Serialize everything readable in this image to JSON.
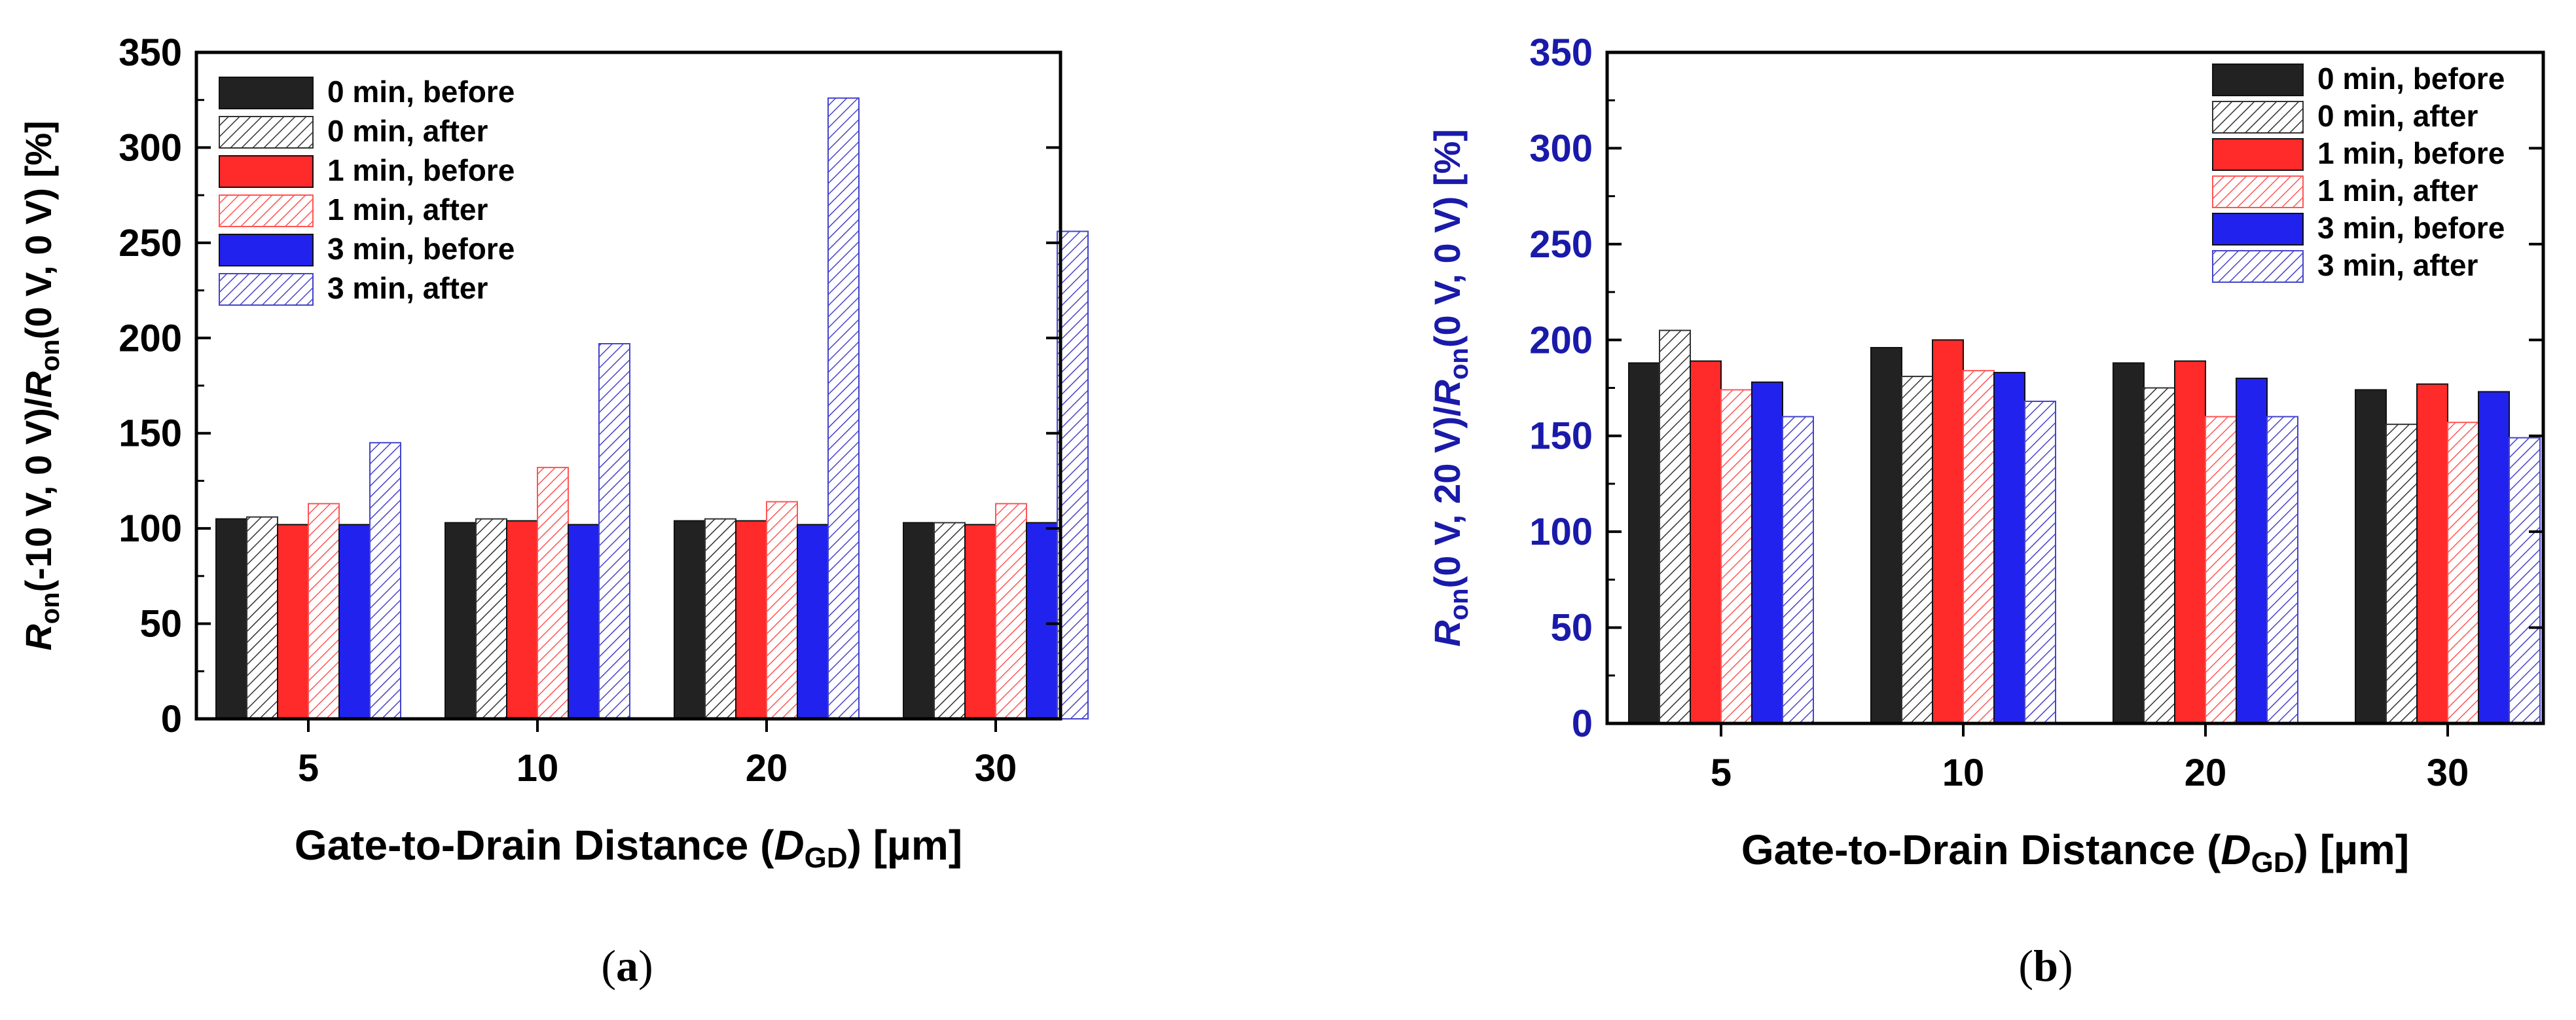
{
  "chart_data": [
    {
      "type": "bar",
      "panel_label": "a",
      "categories": [
        "5",
        "10",
        "20",
        "30"
      ],
      "xlabel": "Gate-to-Drain Distance (DGD) [µm]",
      "xlabel_parts": {
        "pre": "Gate-to-Drain Distance (",
        "italic": "D",
        "sub": "GD",
        "post": ") [µm]"
      },
      "ylabel": "Ron(-10 V, 0 V)/Ron(0 V, 0 V) [%]",
      "ylabel_parts": {
        "r": "R",
        "on": "on",
        "mid": "(-10 V, 0 V)/",
        "end": "(0 V, 0 V) [%]"
      },
      "ylabel_color": "#000000",
      "ylim": [
        0,
        350
      ],
      "yticks": [
        0,
        50,
        100,
        150,
        200,
        250,
        300,
        350
      ],
      "legend_position": "top-left",
      "series": [
        {
          "name": "0 min, before",
          "color": "#222222",
          "pattern": "solid",
          "values": [
            105,
            103,
            104,
            103
          ]
        },
        {
          "name": "0 min, after",
          "color": "#333333",
          "pattern": "hatch",
          "values": [
            106,
            105,
            105,
            103
          ]
        },
        {
          "name": "1 min, before",
          "color": "#ff2a2a",
          "pattern": "solid",
          "values": [
            102,
            104,
            104,
            102
          ]
        },
        {
          "name": "1 min, after",
          "color": "#ff5555",
          "pattern": "hatch",
          "values": [
            113,
            132,
            114,
            113
          ]
        },
        {
          "name": "3 min, before",
          "color": "#2222ee",
          "pattern": "solid",
          "values": [
            102,
            102,
            102,
            103
          ]
        },
        {
          "name": "3 min, after",
          "color": "#4444cc",
          "pattern": "hatch",
          "values": [
            145,
            197,
            326,
            256
          ]
        }
      ]
    },
    {
      "type": "bar",
      "panel_label": "b",
      "categories": [
        "5",
        "10",
        "20",
        "30"
      ],
      "xlabel": "Gate-to-Drain Distance (DGD) [µm]",
      "xlabel_parts": {
        "pre": "Gate-to-Drain Distance (",
        "italic": "D",
        "sub": "GD",
        "post": ") [µm]"
      },
      "ylabel": "Ron(0 V, 20 V)/Ron(0 V, 0 V) [%]",
      "ylabel_parts": {
        "r": "R",
        "on": "on",
        "mid": "(0 V, 20 V)/",
        "end": "(0 V, 0 V) [%]"
      },
      "ylabel_color": "#1a1aaa",
      "ylim": [
        0,
        350
      ],
      "yticks": [
        0,
        50,
        100,
        150,
        200,
        250,
        300,
        350
      ],
      "legend_position": "top-right",
      "series": [
        {
          "name": "0 min, before",
          "color": "#222222",
          "pattern": "solid",
          "values": [
            188,
            196,
            188,
            174
          ]
        },
        {
          "name": "0 min, after",
          "color": "#333333",
          "pattern": "hatch",
          "values": [
            205,
            181,
            175,
            156
          ]
        },
        {
          "name": "1 min, before",
          "color": "#ff2a2a",
          "pattern": "solid",
          "values": [
            189,
            200,
            189,
            177
          ]
        },
        {
          "name": "1 min, after",
          "color": "#ff5555",
          "pattern": "hatch",
          "values": [
            174,
            184,
            160,
            157
          ]
        },
        {
          "name": "3 min, before",
          "color": "#2222ee",
          "pattern": "solid",
          "values": [
            178,
            183,
            180,
            173
          ]
        },
        {
          "name": "3 min, after",
          "color": "#4444cc",
          "pattern": "hatch",
          "values": [
            160,
            168,
            160,
            149
          ]
        }
      ]
    }
  ]
}
